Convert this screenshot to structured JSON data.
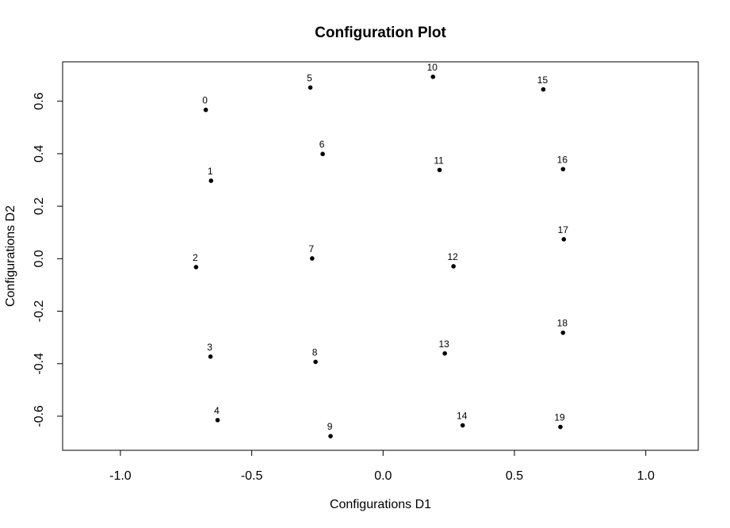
{
  "chart_data": {
    "type": "scatter",
    "title": "Configuration Plot",
    "xlabel": "Configurations D1",
    "ylabel": "Configurations D2",
    "xlim": [
      -1.22,
      1.2
    ],
    "ylim": [
      -0.73,
      0.75
    ],
    "xticks": [
      -1.0,
      -0.5,
      0.0,
      0.5,
      1.0
    ],
    "xtick_labels": [
      "-1.0",
      "-0.5",
      "0.0",
      "0.5",
      "1.0"
    ],
    "yticks": [
      -0.6,
      -0.4,
      -0.2,
      0.0,
      0.2,
      0.4,
      0.6
    ],
    "ytick_labels": [
      "-0.6",
      "-0.4",
      "-0.2",
      "0.0",
      "0.2",
      "0.4",
      "0.6"
    ],
    "grid": false,
    "point_color": "#000000",
    "points": [
      {
        "label": "0",
        "x": -0.675,
        "y": 0.567
      },
      {
        "label": "1",
        "x": -0.655,
        "y": 0.297
      },
      {
        "label": "2",
        "x": -0.712,
        "y": -0.032
      },
      {
        "label": "3",
        "x": -0.657,
        "y": -0.373
      },
      {
        "label": "4",
        "x": -0.63,
        "y": -0.615
      },
      {
        "label": "5",
        "x": -0.277,
        "y": 0.652
      },
      {
        "label": "6",
        "x": -0.23,
        "y": 0.399
      },
      {
        "label": "7",
        "x": -0.27,
        "y": 0.001
      },
      {
        "label": "8",
        "x": -0.257,
        "y": -0.393
      },
      {
        "label": "9",
        "x": -0.2,
        "y": -0.676
      },
      {
        "label": "10",
        "x": 0.19,
        "y": 0.693
      },
      {
        "label": "11",
        "x": 0.215,
        "y": 0.338
      },
      {
        "label": "12",
        "x": 0.268,
        "y": -0.029
      },
      {
        "label": "13",
        "x": 0.235,
        "y": -0.361
      },
      {
        "label": "14",
        "x": 0.303,
        "y": -0.635
      },
      {
        "label": "15",
        "x": 0.61,
        "y": 0.645
      },
      {
        "label": "16",
        "x": 0.685,
        "y": 0.341
      },
      {
        "label": "17",
        "x": 0.688,
        "y": 0.074
      },
      {
        "label": "18",
        "x": 0.685,
        "y": -0.282
      },
      {
        "label": "19",
        "x": 0.675,
        "y": -0.641
      }
    ]
  }
}
